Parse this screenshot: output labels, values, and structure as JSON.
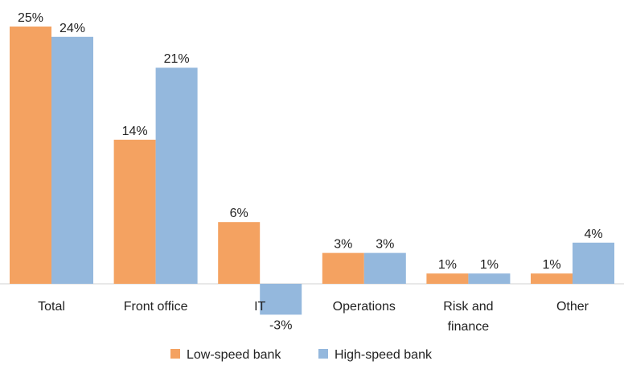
{
  "chart_data": {
    "type": "bar",
    "categories": [
      "Total",
      "Front office",
      "IT",
      "Operations",
      "Risk and finance",
      "Other"
    ],
    "category_label_lines": [
      [
        "Total"
      ],
      [
        "Front office"
      ],
      [
        "IT"
      ],
      [
        "Operations"
      ],
      [
        "Risk and",
        "finance"
      ],
      [
        "Other"
      ]
    ],
    "series": [
      {
        "name": "Low-speed bank",
        "values": [
          25,
          14,
          6,
          3,
          1,
          1
        ],
        "labels": [
          "25%",
          "14%",
          "6%",
          "3%",
          "1%",
          "1%"
        ],
        "color": "#F4A261"
      },
      {
        "name": "High-speed bank",
        "values": [
          24,
          21,
          -3,
          3,
          1,
          4
        ],
        "labels": [
          "24%",
          "21%",
          "-3%",
          "3%",
          "1%",
          "4%"
        ],
        "color": "#94B8DD"
      }
    ],
    "ylim": [
      -3,
      25
    ],
    "grid": false,
    "legend": "bottom",
    "title": "",
    "xlabel": "",
    "ylabel": ""
  }
}
